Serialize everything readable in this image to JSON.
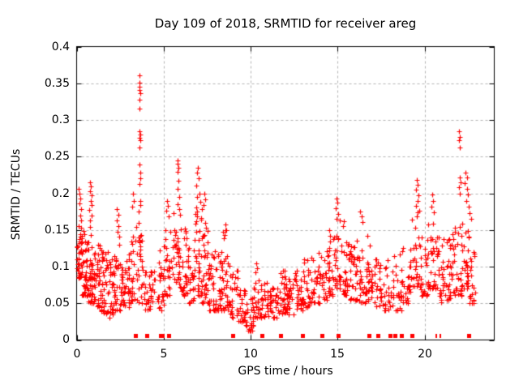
{
  "title": "Day 109 of 2018, SRMTID for receiver areg",
  "chart_data": {
    "type": "scatter",
    "title": "Day 109 of 2018, SRMTID for receiver areg",
    "xlabel": "GPS time / hours",
    "ylabel": "SRMTID / TECUs",
    "xlim": [
      0,
      24
    ],
    "ylim": [
      0,
      0.4
    ],
    "xticks": [
      0,
      5,
      10,
      15,
      20
    ],
    "yticks": [
      0,
      0.05,
      0.1,
      0.15,
      0.2,
      0.25,
      0.3,
      0.35,
      0.4
    ],
    "xtick_labels": [
      "0",
      "5",
      "10",
      "15",
      "20"
    ],
    "ytick_labels": [
      "0.4",
      "0.35",
      "0.3",
      "0.25",
      "0.2",
      "0.15",
      "0.1",
      "0.05",
      "0"
    ],
    "grid": true,
    "grid_color": "#b3b3b3",
    "legend": "none",
    "marker": {
      "shape": "plus",
      "color": "#ff0000",
      "size": 7
    },
    "series_name": "SRMTID",
    "prng_seed": 109,
    "cluster_bands": [
      [
        0.02,
        0.32,
        45,
        0.085,
        0.16
      ],
      [
        0.32,
        0.68,
        40,
        0.06,
        0.15
      ],
      [
        0.68,
        0.98,
        35,
        0.05,
        0.155
      ],
      [
        0.98,
        1.35,
        38,
        0.045,
        0.13
      ],
      [
        1.35,
        1.8,
        40,
        0.035,
        0.125
      ],
      [
        1.8,
        2.18,
        34,
        0.03,
        0.115
      ],
      [
        2.18,
        2.6,
        30,
        0.04,
        0.135
      ],
      [
        2.6,
        3.0,
        28,
        0.045,
        0.12
      ],
      [
        3.0,
        3.45,
        30,
        0.05,
        0.155
      ],
      [
        3.45,
        3.85,
        28,
        0.05,
        0.17
      ],
      [
        3.85,
        4.2,
        18,
        0.04,
        0.1
      ],
      [
        4.2,
        4.6,
        16,
        0.04,
        0.095
      ],
      [
        4.6,
        5.0,
        24,
        0.04,
        0.125
      ],
      [
        5.0,
        5.45,
        28,
        0.06,
        0.155
      ],
      [
        5.45,
        6.0,
        36,
        0.07,
        0.175
      ],
      [
        6.0,
        6.35,
        28,
        0.06,
        0.165
      ],
      [
        6.35,
        6.8,
        28,
        0.05,
        0.14
      ],
      [
        6.8,
        7.2,
        36,
        0.06,
        0.185
      ],
      [
        7.2,
        7.55,
        30,
        0.05,
        0.175
      ],
      [
        7.55,
        7.95,
        28,
        0.04,
        0.12
      ],
      [
        7.95,
        8.35,
        30,
        0.04,
        0.125
      ],
      [
        8.35,
        8.8,
        32,
        0.04,
        0.15
      ],
      [
        8.8,
        9.3,
        26,
        0.03,
        0.095
      ],
      [
        9.3,
        9.7,
        24,
        0.025,
        0.07
      ],
      [
        9.7,
        10.15,
        26,
        0.012,
        0.062
      ],
      [
        10.15,
        10.5,
        24,
        0.03,
        0.1
      ],
      [
        10.5,
        11.0,
        28,
        0.03,
        0.08
      ],
      [
        11.0,
        11.5,
        28,
        0.03,
        0.075
      ],
      [
        11.5,
        12.0,
        30,
        0.035,
        0.095
      ],
      [
        12.0,
        12.5,
        30,
        0.035,
        0.09
      ],
      [
        12.5,
        13.0,
        30,
        0.04,
        0.1
      ],
      [
        13.0,
        13.5,
        28,
        0.045,
        0.11
      ],
      [
        13.5,
        14.0,
        28,
        0.05,
        0.12
      ],
      [
        14.0,
        14.5,
        28,
        0.055,
        0.135
      ],
      [
        14.5,
        14.85,
        22,
        0.06,
        0.15
      ],
      [
        14.85,
        15.15,
        20,
        0.07,
        0.165
      ],
      [
        15.15,
        15.7,
        32,
        0.06,
        0.14
      ],
      [
        15.7,
        16.2,
        32,
        0.055,
        0.135
      ],
      [
        16.2,
        16.7,
        30,
        0.05,
        0.15
      ],
      [
        16.7,
        17.2,
        28,
        0.05,
        0.13
      ],
      [
        17.2,
        17.7,
        24,
        0.045,
        0.115
      ],
      [
        17.7,
        18.2,
        22,
        0.04,
        0.11
      ],
      [
        18.2,
        18.7,
        24,
        0.04,
        0.12
      ],
      [
        18.7,
        19.2,
        26,
        0.05,
        0.13
      ],
      [
        19.2,
        19.7,
        26,
        0.07,
        0.175
      ],
      [
        19.7,
        20.2,
        28,
        0.06,
        0.14
      ],
      [
        20.2,
        20.6,
        24,
        0.07,
        0.16
      ],
      [
        20.6,
        21.1,
        30,
        0.05,
        0.145
      ],
      [
        21.1,
        21.55,
        28,
        0.055,
        0.15
      ],
      [
        21.55,
        22.1,
        34,
        0.06,
        0.155
      ],
      [
        22.1,
        22.55,
        30,
        0.07,
        0.16
      ],
      [
        22.55,
        22.9,
        20,
        0.05,
        0.13
      ]
    ],
    "spike_points": [
      [
        0.12,
        0.206
      ],
      [
        0.18,
        0.199
      ],
      [
        0.22,
        0.193
      ],
      [
        0.15,
        0.186
      ],
      [
        0.27,
        0.178
      ],
      [
        0.2,
        0.17
      ],
      [
        0.25,
        0.163
      ],
      [
        0.78,
        0.215
      ],
      [
        0.82,
        0.209
      ],
      [
        0.75,
        0.203
      ],
      [
        0.85,
        0.197
      ],
      [
        0.8,
        0.19
      ],
      [
        0.88,
        0.184
      ],
      [
        0.74,
        0.177
      ],
      [
        0.84,
        0.17
      ],
      [
        0.79,
        0.163
      ],
      [
        2.3,
        0.178
      ],
      [
        2.38,
        0.171
      ],
      [
        2.32,
        0.163
      ],
      [
        2.42,
        0.155
      ],
      [
        2.35,
        0.147
      ],
      [
        2.45,
        0.141
      ],
      [
        3.25,
        0.2
      ],
      [
        3.3,
        0.19
      ],
      [
        3.2,
        0.182
      ],
      [
        3.62,
        0.361
      ],
      [
        3.6,
        0.351
      ],
      [
        3.63,
        0.345
      ],
      [
        3.61,
        0.341
      ],
      [
        3.64,
        0.337
      ],
      [
        3.62,
        0.328
      ],
      [
        3.63,
        0.315
      ],
      [
        3.6,
        0.285
      ],
      [
        3.64,
        0.28
      ],
      [
        3.62,
        0.276
      ],
      [
        3.65,
        0.272
      ],
      [
        3.63,
        0.262
      ],
      [
        3.61,
        0.239
      ],
      [
        3.66,
        0.228
      ],
      [
        3.64,
        0.22
      ],
      [
        3.62,
        0.213
      ],
      [
        3.65,
        0.19
      ],
      [
        3.67,
        0.184
      ],
      [
        3.58,
        0.175
      ],
      [
        5.2,
        0.19
      ],
      [
        5.25,
        0.183
      ],
      [
        5.15,
        0.176
      ],
      [
        5.3,
        0.168
      ],
      [
        5.78,
        0.245
      ],
      [
        5.81,
        0.24
      ],
      [
        5.84,
        0.235
      ],
      [
        5.79,
        0.229
      ],
      [
        5.86,
        0.217
      ],
      [
        5.82,
        0.206
      ],
      [
        5.88,
        0.195
      ],
      [
        5.8,
        0.185
      ],
      [
        5.9,
        0.178
      ],
      [
        6.95,
        0.235
      ],
      [
        6.9,
        0.228
      ],
      [
        7.0,
        0.22
      ],
      [
        6.88,
        0.21
      ],
      [
        7.05,
        0.199
      ],
      [
        6.93,
        0.195
      ],
      [
        7.1,
        0.188
      ],
      [
        7.35,
        0.2
      ],
      [
        7.4,
        0.192
      ],
      [
        7.3,
        0.184
      ],
      [
        8.55,
        0.157
      ],
      [
        8.6,
        0.15
      ],
      [
        8.5,
        0.143
      ],
      [
        10.32,
        0.104
      ],
      [
        10.36,
        0.098
      ],
      [
        14.92,
        0.193
      ],
      [
        15.0,
        0.187
      ],
      [
        14.88,
        0.18
      ],
      [
        15.05,
        0.172
      ],
      [
        14.95,
        0.165
      ],
      [
        15.35,
        0.162
      ],
      [
        15.3,
        0.155
      ],
      [
        16.3,
        0.175
      ],
      [
        16.38,
        0.168
      ],
      [
        16.45,
        0.161
      ],
      [
        19.55,
        0.218
      ],
      [
        19.6,
        0.212
      ],
      [
        19.52,
        0.205
      ],
      [
        19.65,
        0.197
      ],
      [
        19.58,
        0.19
      ],
      [
        19.5,
        0.183
      ],
      [
        19.68,
        0.176
      ],
      [
        20.42,
        0.198
      ],
      [
        20.48,
        0.19
      ],
      [
        20.38,
        0.182
      ],
      [
        20.52,
        0.174
      ],
      [
        21.98,
        0.284
      ],
      [
        22.02,
        0.277
      ],
      [
        21.97,
        0.272
      ],
      [
        22.0,
        0.262
      ],
      [
        22.0,
        0.222
      ],
      [
        22.05,
        0.215
      ],
      [
        21.95,
        0.208
      ],
      [
        22.02,
        0.2
      ],
      [
        22.35,
        0.228
      ],
      [
        22.42,
        0.221
      ],
      [
        22.3,
        0.214
      ],
      [
        22.46,
        0.206
      ],
      [
        22.5,
        0.198
      ],
      [
        22.38,
        0.19
      ],
      [
        22.55,
        0.182
      ],
      [
        22.6,
        0.173
      ],
      [
        22.65,
        0.165
      ]
    ],
    "zero_marker_hours": [
      3.38,
      4.03,
      4.83,
      4.92,
      5.29,
      8.98,
      10.66,
      11.72,
      12.99,
      14.11,
      15.04,
      16.82,
      17.33,
      18.03,
      18.31,
      18.68,
      19.29,
      22.51
    ],
    "zero_thin_marker_hours": [
      20.69,
      20.88
    ]
  }
}
